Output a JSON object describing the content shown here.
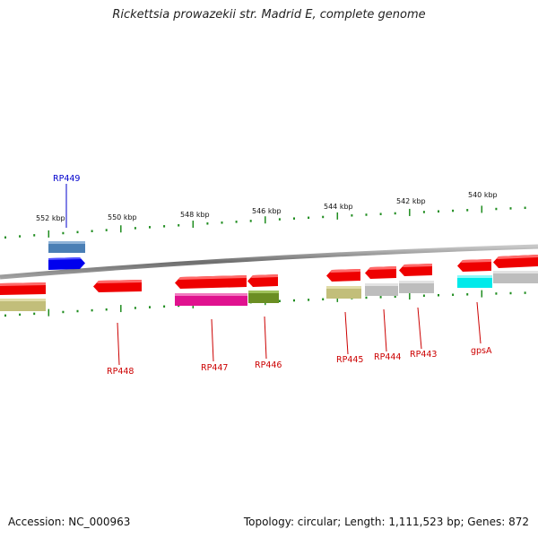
{
  "title": "Rickettsia prowazekii str. Madrid E, complete genome",
  "footer": {
    "accession": "Accession: NC_000963",
    "summary": "Topology: circular; Length: 1,111,523 bp; Genes: 872"
  },
  "ticks": [
    {
      "label": "552 kbp",
      "kbp": 552
    },
    {
      "label": "550 kbp",
      "kbp": 550
    },
    {
      "label": "548 kbp",
      "kbp": 548
    },
    {
      "label": "546 kbp",
      "kbp": 546
    },
    {
      "label": "544 kbp",
      "kbp": 544
    },
    {
      "label": "542 kbp",
      "kbp": 542
    },
    {
      "label": "540 kbp",
      "kbp": 540
    }
  ],
  "genes": [
    {
      "name": "RP449",
      "label_color": "#0000cc"
    },
    {
      "name": "RP448",
      "label_color": "#cc0000"
    },
    {
      "name": "RP447",
      "label_color": "#cc0000"
    },
    {
      "name": "RP446",
      "label_color": "#cc0000"
    },
    {
      "name": "RP445",
      "label_color": "#cc0000"
    },
    {
      "name": "RP444",
      "label_color": "#cc0000"
    },
    {
      "name": "RP443",
      "label_color": "#cc0000"
    },
    {
      "name": "gpsA",
      "label_color": "#cc0000"
    }
  ],
  "colors": {
    "reverse_strand_gene": "#ee0000",
    "forward_strand_gene": "#0000ee",
    "backbone": "#8a8a8a",
    "tick": "#1e8c1e",
    "cog_olive": "#c2be7a",
    "cog_steelblue": "#4a7fb5",
    "cog_magenta": "#e0128f",
    "cog_darkolive": "#6b8e23",
    "cog_gray": "#bdbdbd",
    "cog_cyan": "#00eaea"
  }
}
